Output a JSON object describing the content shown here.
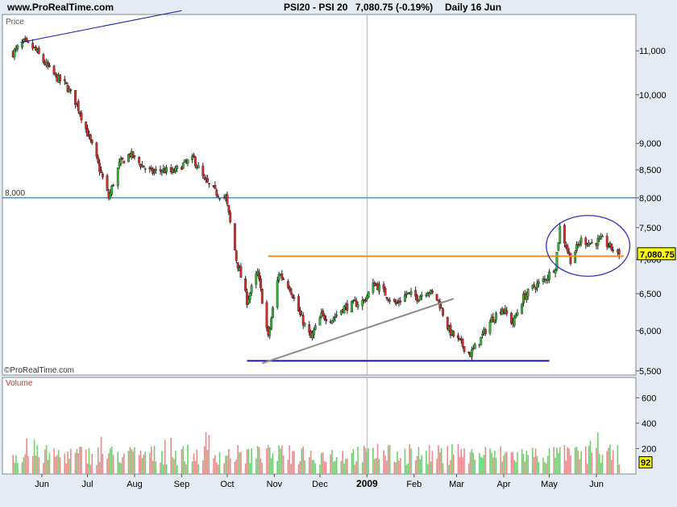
{
  "header": {
    "site": "www.ProRealTime.com",
    "symbol": "PSI20 - PSI 20",
    "price": "7,080.75 (-0.19%)",
    "period": "Daily  16 Jun"
  },
  "chart_data": [
    {
      "type": "candlestick",
      "panel_label": "Price",
      "watermark": "©ProRealTime.com",
      "scale": "log",
      "ylim": [
        5450,
        11900
      ],
      "y_ticks": [
        5500,
        6000,
        6500,
        7000,
        7500,
        8000,
        8500,
        9000,
        10000,
        11000
      ],
      "y_tick_labels": [
        "5,500",
        "6,000",
        "6,500",
        "7,000",
        "7,500",
        "8,000",
        "8,500",
        "9,000",
        "10,000",
        "11,000"
      ],
      "x_tick_labels": [
        "Jun",
        "Jul",
        "Aug",
        "Sep",
        "Oct",
        "Nov",
        "Dec",
        "2009",
        "Feb",
        "Mar",
        "Apr",
        "May",
        "Jun"
      ],
      "last_value": 7080.75,
      "last_value_label": "7,080.75",
      "close_path": [
        [
          "2008-05-13",
          10950
        ],
        [
          "2008-05-20",
          11200
        ],
        [
          "2008-05-27",
          11050
        ],
        [
          "2008-06-03",
          10700
        ],
        [
          "2008-06-10",
          10400
        ],
        [
          "2008-06-17",
          10200
        ],
        [
          "2008-06-24",
          9800
        ],
        [
          "2008-07-01",
          9200
        ],
        [
          "2008-07-08",
          8600
        ],
        [
          "2008-07-15",
          8000
        ],
        [
          "2008-07-22",
          8600
        ],
        [
          "2008-07-29",
          8800
        ],
        [
          "2008-08-05",
          8600
        ],
        [
          "2008-08-12",
          8450
        ],
        [
          "2008-08-19",
          8500
        ],
        [
          "2008-08-26",
          8450
        ],
        [
          "2008-09-02",
          8600
        ],
        [
          "2008-09-09",
          8700
        ],
        [
          "2008-09-16",
          8300
        ],
        [
          "2008-09-23",
          8100
        ],
        [
          "2008-09-30",
          8000
        ],
        [
          "2008-10-07",
          7000
        ],
        [
          "2008-10-14",
          6400
        ],
        [
          "2008-10-21",
          6800
        ],
        [
          "2008-10-28",
          5900
        ],
        [
          "2008-11-04",
          6800
        ],
        [
          "2008-11-11",
          6600
        ],
        [
          "2008-11-18",
          6200
        ],
        [
          "2008-11-25",
          5900
        ],
        [
          "2008-12-02",
          6200
        ],
        [
          "2008-12-09",
          6150
        ],
        [
          "2008-12-16",
          6300
        ],
        [
          "2008-12-23",
          6350
        ],
        [
          "2008-12-30",
          6400
        ],
        [
          "2009-01-06",
          6650
        ],
        [
          "2009-01-13",
          6500
        ],
        [
          "2009-01-20",
          6350
        ],
        [
          "2009-01-27",
          6500
        ],
        [
          "2009-02-03",
          6450
        ],
        [
          "2009-02-10",
          6550
        ],
        [
          "2009-02-17",
          6400
        ],
        [
          "2009-02-24",
          6000
        ],
        [
          "2009-03-03",
          5850
        ],
        [
          "2009-03-10",
          5700
        ],
        [
          "2009-03-17",
          5900
        ],
        [
          "2009-03-24",
          6150
        ],
        [
          "2009-03-31",
          6300
        ],
        [
          "2009-04-07",
          6100
        ],
        [
          "2009-04-14",
          6450
        ],
        [
          "2009-04-21",
          6600
        ],
        [
          "2009-04-28",
          6700
        ],
        [
          "2009-05-05",
          6900
        ],
        [
          "2009-05-08",
          7500
        ],
        [
          "2009-05-15",
          7000
        ],
        [
          "2009-05-22",
          7300
        ],
        [
          "2009-05-29",
          7250
        ],
        [
          "2009-06-05",
          7300
        ],
        [
          "2009-06-12",
          7150
        ],
        [
          "2009-06-16",
          7080
        ]
      ],
      "drawings": {
        "level_line": {
          "value": 8000,
          "label": "8,000"
        },
        "resistance_line": {
          "value": 7050,
          "from": "2008-10-28",
          "to": "2009-06-19"
        },
        "support_line": {
          "value": 5620,
          "from": "2008-10-14",
          "to": "2009-05-01"
        },
        "trendline": {
          "from": [
            "2008-10-24",
            5590
          ],
          "to": [
            "2009-02-27",
            6430
          ]
        },
        "top_line": {
          "from": [
            "2008-05-18",
            11200
          ],
          "to": [
            "2008-09-01",
            12000
          ]
        },
        "ellipse": {
          "from": "2009-04-29",
          "to": "2009-06-23",
          "high": 7700,
          "low": 6750
        }
      }
    },
    {
      "type": "bar",
      "panel_label": "Volume",
      "ylim": [
        0,
        760
      ],
      "y_ticks": [
        200,
        400,
        600
      ],
      "y_tick_labels": [
        "200",
        "400",
        "600"
      ],
      "last_value": 92,
      "last_value_label": "92"
    }
  ],
  "colors": {
    "up": "#2fb52f",
    "down": "#d92a2a",
    "volume_up": "#6fcf6f",
    "volume_down": "#e98b8b",
    "level_line": "#4a90e2",
    "resistance": "#f28c28",
    "support": "#1a1aaa",
    "trendline": "#8c8c8c",
    "ellipse": "#3333bb",
    "last_price_box": "#ffff00",
    "background": "#e4ebf3",
    "panel": "#ffffff"
  }
}
